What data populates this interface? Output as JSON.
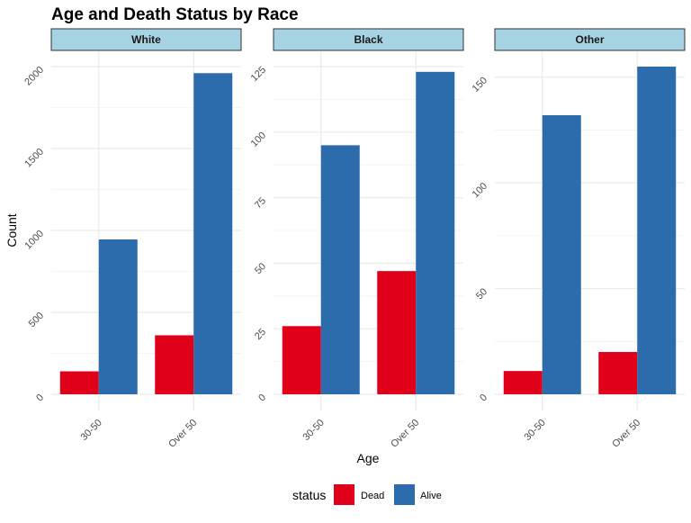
{
  "title": "Age and Death Status by Race",
  "xlabel": "Age",
  "ylabel": "Count",
  "legend": {
    "title": "status",
    "items": [
      {
        "label": "Dead",
        "color": "#E0001A"
      },
      {
        "label": "Alive",
        "color": "#2C6BAC"
      }
    ]
  },
  "colors": {
    "strip_fill": "#A6D3E3",
    "grid": "#EBEBEB"
  },
  "chart_data": {
    "type": "bar",
    "title": "Age and Death Status by Race",
    "xlabel": "Age",
    "ylabel": "Count",
    "categories": [
      "30-50",
      "Over 50"
    ],
    "legend_placement": "bottom",
    "grid": true,
    "panels": [
      {
        "facet": "White",
        "ylim": [
          0,
          2000
        ],
        "yticks": [
          0,
          500,
          1000,
          1500,
          2000
        ],
        "series": [
          {
            "name": "Dead",
            "values": [
              140,
              360
            ]
          },
          {
            "name": "Alive",
            "values": [
              945,
              1960
            ]
          }
        ]
      },
      {
        "facet": "Black",
        "ylim": [
          0,
          125
        ],
        "yticks": [
          0,
          25,
          50,
          75,
          100,
          125
        ],
        "series": [
          {
            "name": "Dead",
            "values": [
              26,
              47
            ]
          },
          {
            "name": "Alive",
            "values": [
              95,
              123
            ]
          }
        ]
      },
      {
        "facet": "Other",
        "ylim": [
          0,
          155
        ],
        "yticks": [
          0,
          50,
          100,
          150
        ],
        "series": [
          {
            "name": "Dead",
            "values": [
              11,
              20
            ]
          },
          {
            "name": "Alive",
            "values": [
              132,
              155
            ]
          }
        ]
      }
    ]
  }
}
